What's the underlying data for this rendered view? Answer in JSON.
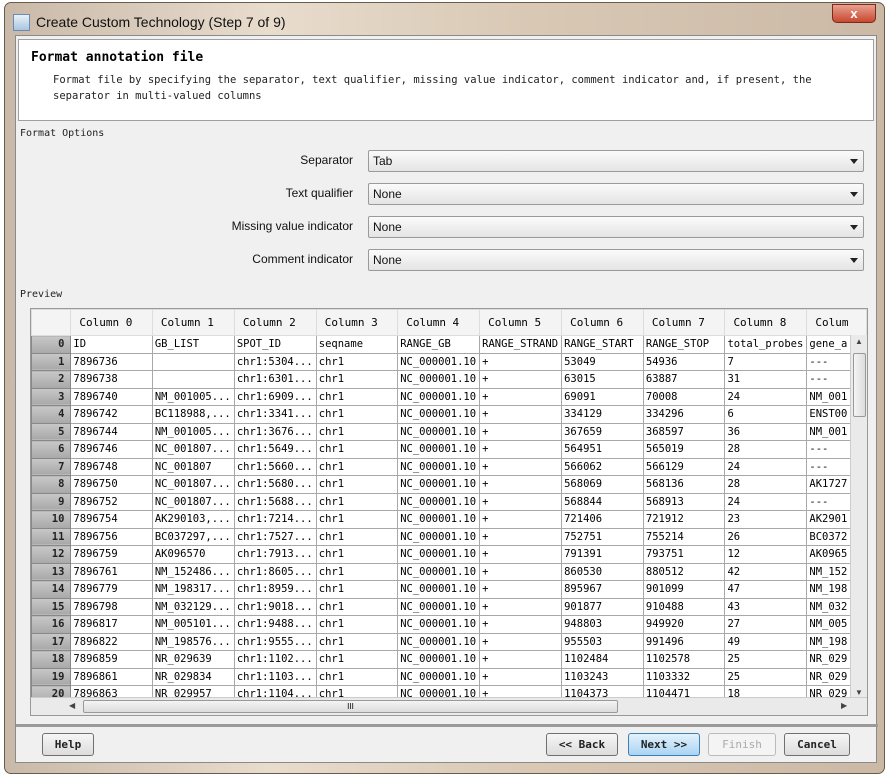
{
  "window": {
    "title": "Create Custom Technology (Step 7 of 9)",
    "close_label": "x"
  },
  "header": {
    "title": "Format annotation file",
    "description": "Format file by specifying the separator, text qualifier, missing value indicator, comment indicator and, if present, the separator in multi-valued columns"
  },
  "format_options": {
    "group_label": "Format Options",
    "fields": [
      {
        "label": "Separator",
        "value": "Tab"
      },
      {
        "label": "Text qualifier",
        "value": "None"
      },
      {
        "label": "Missing value indicator",
        "value": "None"
      },
      {
        "label": "Comment indicator",
        "value": "None"
      }
    ]
  },
  "preview": {
    "label": "Preview",
    "columns": [
      "Column 0",
      "Column 1",
      "Column 2",
      "Column 3",
      "Column 4",
      "Column 5",
      "Column 6",
      "Column 7",
      "Column 8",
      "Colum"
    ],
    "rows": [
      [
        "ID",
        "GB_LIST",
        "SPOT_ID",
        "seqname",
        "RANGE_GB",
        "RANGE_STRAND",
        "RANGE_START",
        "RANGE_STOP",
        "total_probes",
        "gene_a"
      ],
      [
        "7896736",
        "",
        "chr1:5304...",
        "chr1",
        "NC_000001.10",
        "+",
        "53049",
        "54936",
        "7",
        "---"
      ],
      [
        "7896738",
        "",
        "chr1:6301...",
        "chr1",
        "NC_000001.10",
        "+",
        "63015",
        "63887",
        "31",
        "---"
      ],
      [
        "7896740",
        "NM_001005...",
        "chr1:6909...",
        "chr1",
        "NC_000001.10",
        "+",
        "69091",
        "70008",
        "24",
        "NM_001"
      ],
      [
        "7896742",
        "BC118988,...",
        "chr1:3341...",
        "chr1",
        "NC_000001.10",
        "+",
        "334129",
        "334296",
        "6",
        "ENST00"
      ],
      [
        "7896744",
        "NM_001005...",
        "chr1:3676...",
        "chr1",
        "NC_000001.10",
        "+",
        "367659",
        "368597",
        "36",
        "NM_001"
      ],
      [
        "7896746",
        "NC_001807...",
        "chr1:5649...",
        "chr1",
        "NC_000001.10",
        "+",
        "564951",
        "565019",
        "28",
        "---"
      ],
      [
        "7896748",
        "NC_001807",
        "chr1:5660...",
        "chr1",
        "NC_000001.10",
        "+",
        "566062",
        "566129",
        "24",
        "---"
      ],
      [
        "7896750",
        "NC_001807...",
        "chr1:5680...",
        "chr1",
        "NC_000001.10",
        "+",
        "568069",
        "568136",
        "28",
        "AK1727"
      ],
      [
        "7896752",
        "NC_001807...",
        "chr1:5688...",
        "chr1",
        "NC_000001.10",
        "+",
        "568844",
        "568913",
        "24",
        "---"
      ],
      [
        "7896754",
        "AK290103,...",
        "chr1:7214...",
        "chr1",
        "NC_000001.10",
        "+",
        "721406",
        "721912",
        "23",
        "AK2901"
      ],
      [
        "7896756",
        "BC037297,...",
        "chr1:7527...",
        "chr1",
        "NC_000001.10",
        "+",
        "752751",
        "755214",
        "26",
        "BC0372"
      ],
      [
        "7896759",
        "AK096570",
        "chr1:7913...",
        "chr1",
        "NC_000001.10",
        "+",
        "791391",
        "793751",
        "12",
        "AK0965"
      ],
      [
        "7896761",
        "NM_152486...",
        "chr1:8605...",
        "chr1",
        "NC_000001.10",
        "+",
        "860530",
        "880512",
        "42",
        "NM_152"
      ],
      [
        "7896779",
        "NM_198317...",
        "chr1:8959...",
        "chr1",
        "NC_000001.10",
        "+",
        "895967",
        "901099",
        "47",
        "NM_198"
      ],
      [
        "7896798",
        "NM_032129...",
        "chr1:9018...",
        "chr1",
        "NC_000001.10",
        "+",
        "901877",
        "910488",
        "43",
        "NM_032"
      ],
      [
        "7896817",
        "NM_005101...",
        "chr1:9488...",
        "chr1",
        "NC_000001.10",
        "+",
        "948803",
        "949920",
        "27",
        "NM_005"
      ],
      [
        "7896822",
        "NM_198576...",
        "chr1:9555...",
        "chr1",
        "NC_000001.10",
        "+",
        "955503",
        "991496",
        "49",
        "NM_198"
      ],
      [
        "7896859",
        "NR_029639",
        "chr1:1102...",
        "chr1",
        "NC_000001.10",
        "+",
        "1102484",
        "1102578",
        "25",
        "NR_029"
      ],
      [
        "7896861",
        "NR_029834",
        "chr1:1103...",
        "chr1",
        "NC_000001.10",
        "+",
        "1103243",
        "1103332",
        "25",
        "NR_029"
      ],
      [
        "7896863",
        "NR_029957",
        "chr1:1104...",
        "chr1",
        "NC_000001.10",
        "+",
        "1104373",
        "1104471",
        "18",
        "NR_029"
      ]
    ],
    "hscroll_grip": "III"
  },
  "buttons": {
    "help": "Help",
    "back": "<< Back",
    "next": "Next >>",
    "finish": "Finish",
    "cancel": "Cancel"
  }
}
